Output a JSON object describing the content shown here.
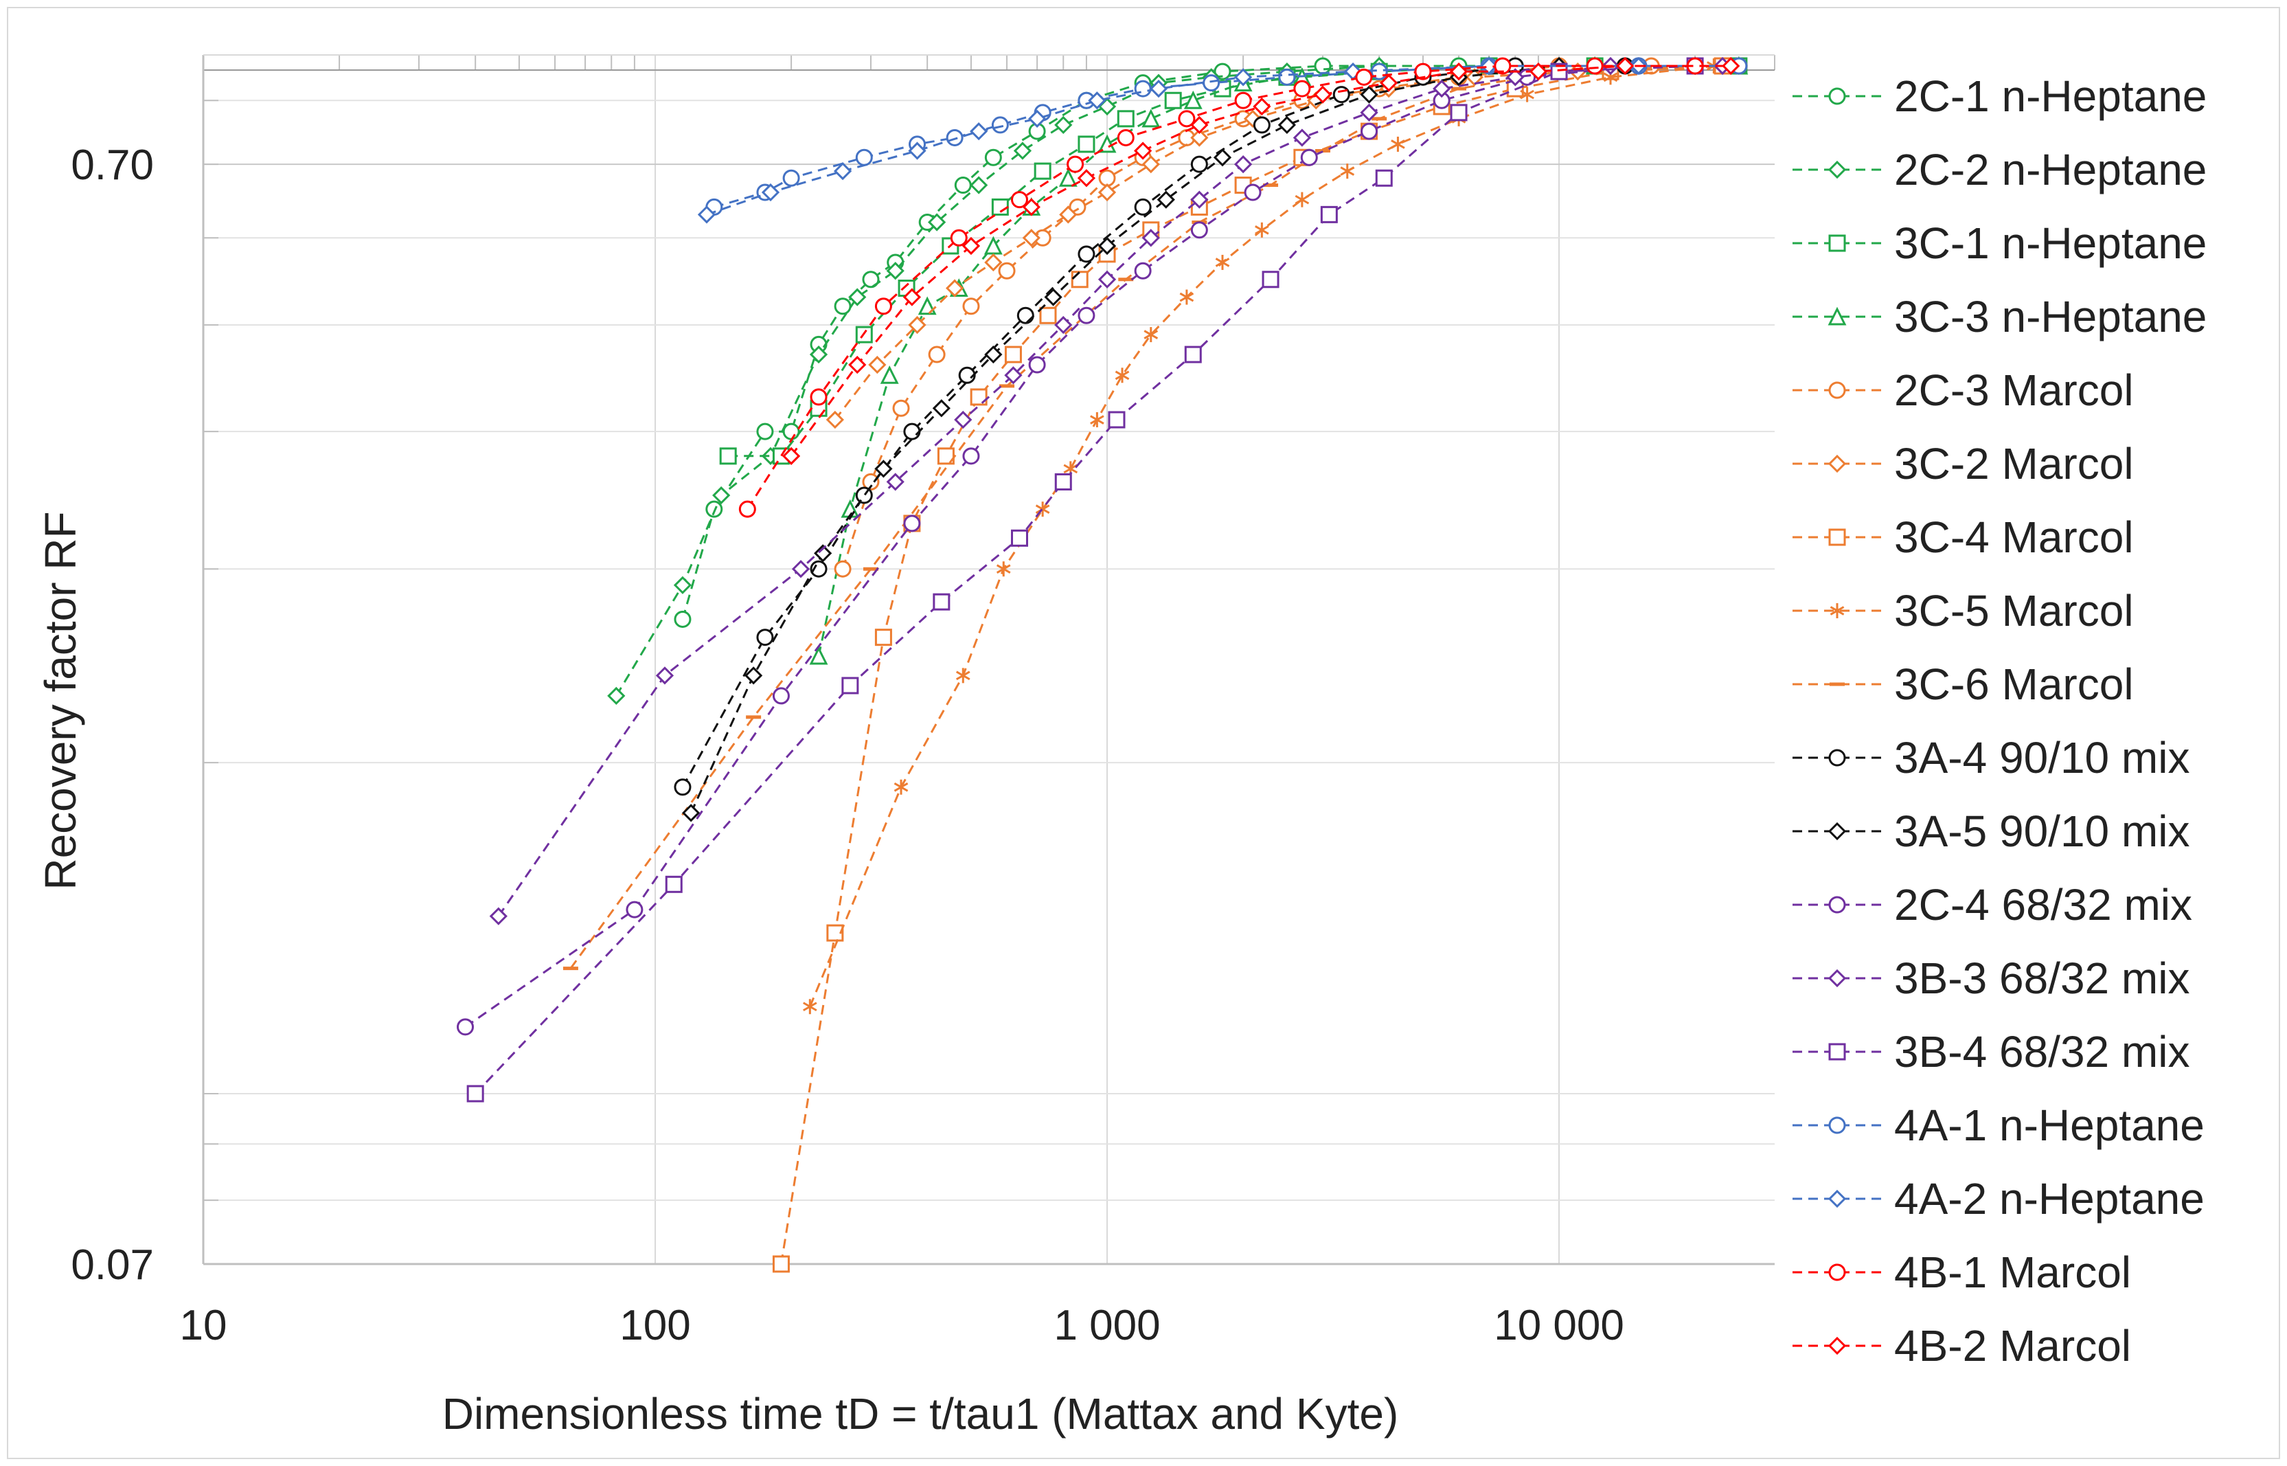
{
  "chart_data": {
    "type": "scatter",
    "title": "",
    "xlabel": "Dimensionless time tD = t/tau1 (Mattax and Kyte)",
    "ylabel": "Recovery factor RF",
    "xscale": "log",
    "yscale": "log",
    "xlim": [
      10,
      30000
    ],
    "ylim": [
      0.07,
      0.88
    ],
    "x_tick_labels": [
      {
        "value": 10,
        "label": "10"
      },
      {
        "value": 100,
        "label": "100"
      },
      {
        "value": 1000,
        "label": "1 000"
      },
      {
        "value": 10000,
        "label": "10 000"
      }
    ],
    "y_tick_labels": [
      {
        "value": 0.07,
        "label": "0.07"
      },
      {
        "value": 0.7,
        "label": "0.70"
      }
    ],
    "grid": true,
    "legend_position": "right",
    "series": [
      {
        "name": "2C-1 n-Heptane",
        "color": "#22a84a",
        "marker": "circle",
        "x": [
          115,
          135,
          175,
          200,
          230,
          260,
          300,
          340,
          400,
          480,
          560,
          700,
          900,
          1200,
          1800,
          3000,
          6000,
          15000,
          25000
        ],
        "y": [
          0.27,
          0.34,
          0.4,
          0.4,
          0.48,
          0.52,
          0.55,
          0.57,
          0.62,
          0.67,
          0.71,
          0.75,
          0.8,
          0.83,
          0.85,
          0.86,
          0.86,
          0.86,
          0.86
        ]
      },
      {
        "name": "2C-2 n-Heptane",
        "color": "#22a84a",
        "marker": "diamond",
        "x": [
          82,
          115,
          140,
          180,
          230,
          280,
          340,
          420,
          520,
          650,
          800,
          1000,
          1300,
          1700,
          2500,
          4000,
          7000,
          12000,
          25000
        ],
        "y": [
          0.23,
          0.29,
          0.35,
          0.38,
          0.47,
          0.53,
          0.56,
          0.62,
          0.67,
          0.72,
          0.76,
          0.79,
          0.83,
          0.84,
          0.85,
          0.86,
          0.86,
          0.86,
          0.86
        ]
      },
      {
        "name": "3C-1 n-Heptane",
        "color": "#22a84a",
        "marker": "square",
        "x": [
          145,
          190,
          230,
          290,
          360,
          450,
          580,
          720,
          900,
          1100,
          1400,
          1800,
          2500,
          4000,
          7000,
          12000,
          25000
        ],
        "y": [
          0.38,
          0.38,
          0.42,
          0.49,
          0.54,
          0.59,
          0.64,
          0.69,
          0.73,
          0.77,
          0.8,
          0.82,
          0.84,
          0.85,
          0.86,
          0.86,
          0.86
        ]
      },
      {
        "name": "3C-3 n-Heptane",
        "color": "#22a84a",
        "marker": "triangle",
        "x": [
          230,
          270,
          330,
          400,
          470,
          560,
          680,
          820,
          1000,
          1250,
          1550,
          2000,
          2700,
          4000,
          7000,
          12000,
          25000
        ],
        "y": [
          0.25,
          0.34,
          0.45,
          0.52,
          0.54,
          0.59,
          0.64,
          0.68,
          0.73,
          0.77,
          0.8,
          0.83,
          0.84,
          0.85,
          0.86,
          0.86,
          0.86
        ]
      },
      {
        "name": "2C-3 Marcol",
        "color": "#ed7d31",
        "marker": "circle",
        "x": [
          260,
          300,
          350,
          420,
          500,
          600,
          720,
          860,
          1000,
          1200,
          1500,
          2000,
          2700,
          4000,
          6000,
          10000,
          16000,
          25000
        ],
        "y": [
          0.3,
          0.36,
          0.42,
          0.47,
          0.52,
          0.56,
          0.6,
          0.64,
          0.68,
          0.71,
          0.74,
          0.77,
          0.8,
          0.82,
          0.84,
          0.86,
          0.86,
          0.86
        ]
      },
      {
        "name": "3C-2 Marcol",
        "color": "#ed7d31",
        "marker": "diamond",
        "x": [
          250,
          310,
          380,
          460,
          560,
          680,
          820,
          1000,
          1250,
          1600,
          2100,
          2900,
          4200,
          6500,
          11000,
          20000
        ],
        "y": [
          0.41,
          0.46,
          0.5,
          0.54,
          0.57,
          0.6,
          0.63,
          0.66,
          0.7,
          0.74,
          0.77,
          0.8,
          0.82,
          0.84,
          0.85,
          0.86
        ]
      },
      {
        "name": "3C-4 Marcol",
        "color": "#ed7d31",
        "marker": "square",
        "x": [
          190,
          250,
          320,
          370,
          440,
          520,
          620,
          740,
          870,
          1000,
          1250,
          1600,
          2000,
          2700,
          3800,
          5500,
          8000,
          13000,
          23000
        ],
        "y": [
          0.07,
          0.14,
          0.26,
          0.33,
          0.38,
          0.43,
          0.47,
          0.51,
          0.55,
          0.58,
          0.61,
          0.64,
          0.67,
          0.71,
          0.75,
          0.79,
          0.82,
          0.85,
          0.86
        ]
      },
      {
        "name": "3C-5 Marcol",
        "color": "#ed7d31",
        "marker": "star",
        "x": [
          220,
          350,
          480,
          590,
          720,
          830,
          950,
          1080,
          1250,
          1500,
          1800,
          2200,
          2700,
          3400,
          4400,
          6000,
          8500,
          13000,
          22000
        ],
        "y": [
          0.12,
          0.19,
          0.24,
          0.3,
          0.34,
          0.37,
          0.41,
          0.45,
          0.49,
          0.53,
          0.57,
          0.61,
          0.65,
          0.69,
          0.73,
          0.77,
          0.81,
          0.84,
          0.86
        ]
      },
      {
        "name": "3C-6 Marcol",
        "color": "#ed7d31",
        "marker": "dash",
        "x": [
          65,
          165,
          300,
          600,
          1100,
          1600,
          2300,
          3000,
          4000,
          6000,
          10000,
          20000
        ],
        "y": [
          0.13,
          0.22,
          0.3,
          0.44,
          0.55,
          0.62,
          0.67,
          0.72,
          0.77,
          0.82,
          0.85,
          0.86
        ]
      },
      {
        "name": "3A-4 90/10 mix",
        "color": "#111111",
        "marker": "circle",
        "x": [
          115,
          175,
          230,
          290,
          370,
          490,
          660,
          900,
          1200,
          1600,
          2200,
          3300,
          5000,
          8000,
          14000,
          25000
        ],
        "y": [
          0.19,
          0.26,
          0.3,
          0.35,
          0.4,
          0.45,
          0.51,
          0.58,
          0.64,
          0.7,
          0.76,
          0.81,
          0.84,
          0.86,
          0.86,
          0.86
        ]
      },
      {
        "name": "3A-5 90/10 mix",
        "color": "#111111",
        "marker": "diamond",
        "x": [
          120,
          165,
          235,
          320,
          430,
          560,
          760,
          1000,
          1350,
          1800,
          2500,
          3800,
          6000,
          10000,
          20000
        ],
        "y": [
          0.18,
          0.24,
          0.31,
          0.37,
          0.42,
          0.47,
          0.53,
          0.59,
          0.65,
          0.71,
          0.76,
          0.81,
          0.84,
          0.86,
          0.86
        ]
      },
      {
        "name": "2C-4 68/32 mix",
        "color": "#7030a0",
        "marker": "circle",
        "x": [
          38,
          90,
          190,
          370,
          500,
          700,
          900,
          1200,
          1600,
          2100,
          2800,
          3800,
          5500,
          8500,
          15000,
          25000
        ],
        "y": [
          0.115,
          0.147,
          0.23,
          0.33,
          0.38,
          0.46,
          0.51,
          0.56,
          0.61,
          0.66,
          0.71,
          0.75,
          0.8,
          0.84,
          0.86,
          0.86
        ]
      },
      {
        "name": "3B-3 68/32 mix",
        "color": "#7030a0",
        "marker": "diamond",
        "x": [
          45,
          105,
          210,
          340,
          480,
          620,
          800,
          1000,
          1250,
          1600,
          2000,
          2700,
          3800,
          5500,
          8000,
          13000,
          23000
        ],
        "y": [
          0.145,
          0.24,
          0.3,
          0.36,
          0.41,
          0.45,
          0.5,
          0.55,
          0.6,
          0.65,
          0.7,
          0.74,
          0.78,
          0.82,
          0.84,
          0.86,
          0.86
        ]
      },
      {
        "name": "3B-4 68/32 mix",
        "color": "#7030a0",
        "marker": "square",
        "x": [
          40,
          110,
          270,
          430,
          640,
          800,
          1050,
          1550,
          2300,
          3100,
          4100,
          6000,
          10000,
          20000
        ],
        "y": [
          0.1,
          0.155,
          0.235,
          0.28,
          0.32,
          0.36,
          0.41,
          0.47,
          0.55,
          0.63,
          0.68,
          0.78,
          0.85,
          0.86
        ]
      },
      {
        "name": "4A-1 n-Heptane",
        "color": "#4472c4",
        "marker": "circle",
        "x": [
          135,
          175,
          200,
          290,
          380,
          460,
          580,
          720,
          900,
          1200,
          1700,
          2500,
          4000,
          7000,
          15000,
          25000
        ],
        "y": [
          0.64,
          0.66,
          0.68,
          0.71,
          0.73,
          0.74,
          0.76,
          0.78,
          0.8,
          0.82,
          0.83,
          0.84,
          0.85,
          0.86,
          0.86,
          0.86
        ]
      },
      {
        "name": "4A-2 n-Heptane",
        "color": "#4472c4",
        "marker": "diamond",
        "x": [
          130,
          180,
          260,
          380,
          520,
          700,
          950,
          1300,
          2000,
          3500,
          7000,
          15000
        ],
        "y": [
          0.63,
          0.66,
          0.69,
          0.72,
          0.75,
          0.77,
          0.8,
          0.82,
          0.84,
          0.85,
          0.86,
          0.86
        ]
      },
      {
        "name": "4B-1 Marcol",
        "color": "#ff0000",
        "marker": "circle",
        "x": [
          160,
          230,
          320,
          470,
          640,
          850,
          1100,
          1500,
          2000,
          2700,
          3700,
          5000,
          7500,
          12000,
          20000
        ],
        "y": [
          0.34,
          0.43,
          0.52,
          0.6,
          0.65,
          0.7,
          0.74,
          0.77,
          0.8,
          0.82,
          0.84,
          0.85,
          0.86,
          0.86,
          0.86
        ]
      },
      {
        "name": "4B-2 Marcol",
        "color": "#ff0000",
        "marker": "diamond",
        "x": [
          200,
          280,
          370,
          500,
          680,
          900,
          1200,
          1600,
          2200,
          3000,
          4200,
          6000,
          9000,
          14000,
          24000
        ],
        "y": [
          0.38,
          0.46,
          0.53,
          0.59,
          0.64,
          0.68,
          0.72,
          0.76,
          0.79,
          0.81,
          0.83,
          0.85,
          0.85,
          0.86,
          0.86
        ]
      }
    ]
  }
}
